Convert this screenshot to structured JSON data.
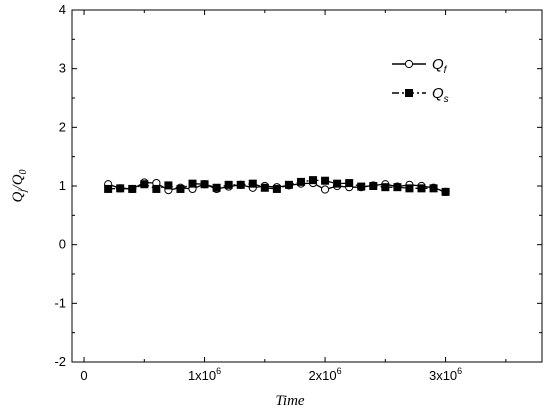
{
  "chart_data": {
    "type": "line",
    "xlabel": "Time",
    "ylabel": "Q_j/Q_0",
    "ylabel_parts": {
      "q1": "Q",
      "s1": "j",
      "slash": "/",
      "q2": "Q",
      "s2": "0"
    },
    "xlim": [
      -100000,
      3800000
    ],
    "ylim": [
      -2,
      4
    ],
    "x_ticks": [
      {
        "value": 0,
        "base": "0",
        "exp": ""
      },
      {
        "value": 1000000,
        "base": "1x10",
        "exp": "6"
      },
      {
        "value": 2000000,
        "base": "2x10",
        "exp": "6"
      },
      {
        "value": 3000000,
        "base": "3x10",
        "exp": "6"
      }
    ],
    "y_ticks": [
      -2,
      -1,
      0,
      1,
      2,
      3,
      4
    ],
    "legend_position": "top-right",
    "series": [
      {
        "name": "Q_f",
        "legend_main": "Q",
        "legend_sub": "f",
        "marker": "open-circle",
        "line_style": "solid",
        "x": [
          200000,
          300000,
          400000,
          500000,
          600000,
          700000,
          800000,
          900000,
          1000000,
          1100000,
          1200000,
          1300000,
          1400000,
          1500000,
          1600000,
          1700000,
          1800000,
          1900000,
          2000000,
          2100000,
          2200000,
          2300000,
          2400000,
          2500000,
          2600000,
          2700000,
          2800000,
          2900000,
          3000000
        ],
        "values": [
          1.03,
          0.96,
          0.95,
          1.06,
          1.05,
          0.93,
          0.97,
          0.95,
          1.03,
          0.95,
          0.99,
          1.02,
          0.97,
          1.0,
          0.98,
          1.01,
          1.04,
          1.05,
          0.94,
          1.0,
          0.98,
          0.98,
          1.01,
          1.03,
          0.99,
          1.02,
          1.0,
          0.97,
          0.9
        ]
      },
      {
        "name": "Q_s",
        "legend_main": "Q",
        "legend_sub": "s",
        "marker": "filled-square",
        "line_style": "dash-dot",
        "x": [
          200000,
          300000,
          400000,
          500000,
          600000,
          700000,
          800000,
          900000,
          1000000,
          1100000,
          1200000,
          1300000,
          1400000,
          1500000,
          1600000,
          1700000,
          1800000,
          1900000,
          2000000,
          2100000,
          2200000,
          2300000,
          2400000,
          2500000,
          2600000,
          2700000,
          2800000,
          2900000,
          3000000
        ],
        "values": [
          0.95,
          0.96,
          0.95,
          1.03,
          0.95,
          1.01,
          0.95,
          1.04,
          1.03,
          0.97,
          1.02,
          1.02,
          1.04,
          0.97,
          0.95,
          1.02,
          1.07,
          1.1,
          1.09,
          1.04,
          1.05,
          0.99,
          1.0,
          0.98,
          0.98,
          0.96,
          0.96,
          0.96,
          0.9
        ]
      }
    ]
  }
}
